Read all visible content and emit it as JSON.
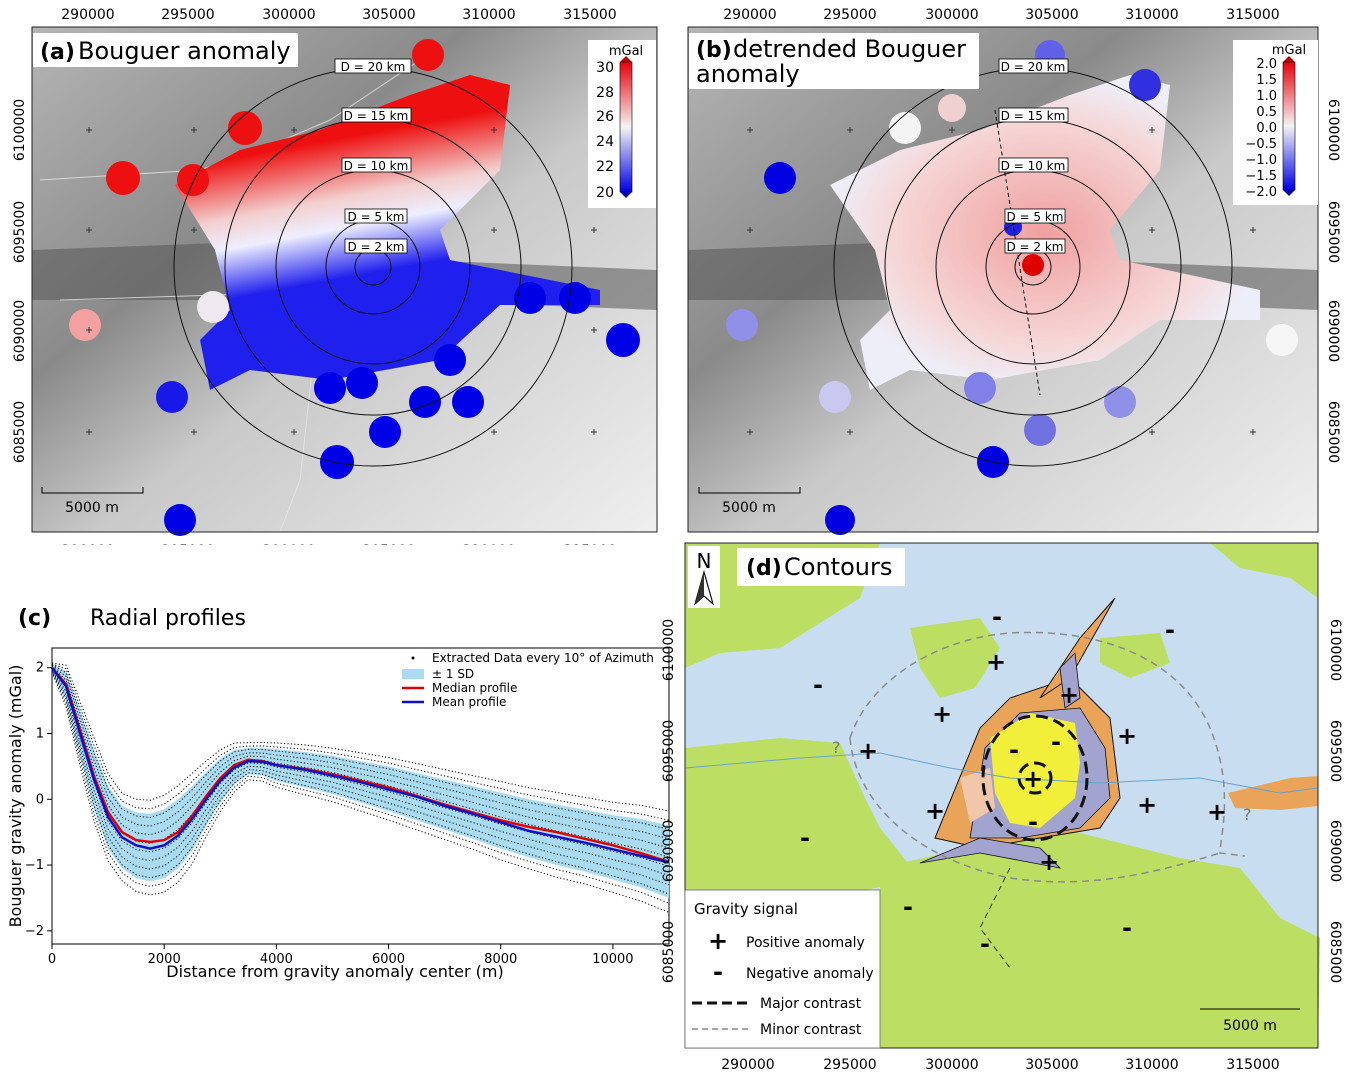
{
  "figure": {
    "panel_a": {
      "letter": "(a)",
      "title": "Bouguer anomaly",
      "colorbar": {
        "unit": "mGal",
        "ticks": [
          "30",
          "28",
          "26",
          "24",
          "22",
          "20"
        ],
        "cmap_high": "#e8000b",
        "cmap_mid": "#f4f4f4",
        "cmap_low": "#0000e6"
      },
      "ring_labels": [
        "D = 20 km",
        "D = 15 km",
        "D = 10 km",
        "D = 5 km",
        "D = 2 km"
      ],
      "scalebar": "5000 m",
      "x_ticks": [
        "290000",
        "295000",
        "300000",
        "305000",
        "310000",
        "315000"
      ],
      "y_ticks": [
        "6100000",
        "6095000",
        "6090000",
        "6085000"
      ]
    },
    "panel_b": {
      "letter": "(b)",
      "title_line1": "detrended Bouguer",
      "title_line2": "anomaly",
      "colorbar": {
        "unit": "mGal",
        "ticks": [
          "2.0",
          "1.5",
          "1.0",
          "0.5",
          "0.0",
          "−0.5",
          "−1.0",
          "−1.5",
          "−2.0"
        ]
      },
      "ring_labels": [
        "D = 20 km",
        "D = 15 km",
        "D = 10 km",
        "D = 5 km",
        "D = 2 km"
      ],
      "scalebar": "5000 m",
      "x_ticks": [
        "290000",
        "295000",
        "300000",
        "305000",
        "310000",
        "315000"
      ],
      "y_ticks": [
        "6100000",
        "6095000",
        "6090000",
        "6085000"
      ]
    },
    "panel_c": {
      "letter": "(c)",
      "title": "Radial profiles",
      "legend": [
        {
          "label": "Extracted Data every 10° of Azimuth",
          "kind": "dots",
          "color": "#000000"
        },
        {
          "label": "± 1 SD",
          "kind": "patch",
          "color": "#a9dcf2"
        },
        {
          "label": "Median profile",
          "kind": "line",
          "color": "#e00000"
        },
        {
          "label": "Mean profile",
          "kind": "line",
          "color": "#1010c8"
        }
      ]
    },
    "panel_d": {
      "letter": "(d)",
      "title": "Contours",
      "north": "N",
      "question_marks": [
        "?",
        "?"
      ],
      "legend_title": "Gravity signal",
      "legend_items": [
        "Positive anomaly",
        "Negative anomaly",
        "Major contrast",
        "Minor contrast"
      ],
      "legend_symbols": [
        "+",
        "-"
      ],
      "scalebar": "5000 m",
      "x_ticks": [
        "290000",
        "295000",
        "300000",
        "305000",
        "310000",
        "315000"
      ],
      "y_ticks": [
        "6100000",
        "6095000",
        "6090000",
        "6085000"
      ],
      "colors": {
        "water": "#c9ddf1",
        "green": "#bcdf63",
        "orange": "#e9a45a",
        "yellow": "#f1ef3a",
        "lavender": "#a3a3cf",
        "pink": "#f2c7a9"
      }
    }
  },
  "chart_data": {
    "type": "line",
    "title": "Radial profiles",
    "xlabel": "Distance from gravity anomaly center (m)",
    "ylabel": "Bouguer gravity anomaly (mGal)",
    "xlim": [
      0,
      11000
    ],
    "ylim": [
      -2.2,
      2.3
    ],
    "x_ticks": [
      0,
      2000,
      4000,
      6000,
      8000,
      10000
    ],
    "y_ticks": [
      2,
      1,
      0,
      -1,
      -2
    ],
    "x": [
      0,
      250,
      500,
      750,
      1000,
      1250,
      1500,
      1750,
      2000,
      2250,
      2500,
      2750,
      3000,
      3250,
      3500,
      3750,
      4000,
      4500,
      5000,
      5500,
      6000,
      6500,
      7000,
      7500,
      8000,
      8500,
      9000,
      9500,
      10000,
      10500,
      11000
    ],
    "series": [
      {
        "name": "Median profile",
        "color": "#e00000",
        "values": [
          2.0,
          1.75,
          1.05,
          0.35,
          -0.2,
          -0.5,
          -0.62,
          -0.65,
          -0.62,
          -0.5,
          -0.25,
          0.05,
          0.32,
          0.52,
          0.6,
          0.58,
          0.52,
          0.46,
          0.38,
          0.28,
          0.18,
          0.05,
          -0.08,
          -0.2,
          -0.32,
          -0.42,
          -0.5,
          -0.6,
          -0.7,
          -0.82,
          -0.95
        ]
      },
      {
        "name": "Mean profile",
        "color": "#1010c8",
        "values": [
          2.0,
          1.72,
          1.0,
          0.3,
          -0.27,
          -0.58,
          -0.7,
          -0.75,
          -0.7,
          -0.55,
          -0.3,
          0.0,
          0.28,
          0.48,
          0.58,
          0.57,
          0.52,
          0.45,
          0.36,
          0.26,
          0.15,
          0.04,
          -0.1,
          -0.22,
          -0.35,
          -0.48,
          -0.57,
          -0.66,
          -0.76,
          -0.86,
          -0.96
        ]
      }
    ],
    "sd_band": {
      "name": "± 1 SD",
      "upper": [
        2.05,
        1.95,
        1.35,
        0.75,
        0.2,
        -0.1,
        -0.2,
        -0.22,
        -0.15,
        0.0,
        0.2,
        0.42,
        0.62,
        0.75,
        0.78,
        0.78,
        0.76,
        0.72,
        0.66,
        0.58,
        0.5,
        0.4,
        0.3,
        0.2,
        0.1,
        0.0,
        -0.08,
        -0.16,
        -0.24,
        -0.3,
        -0.4
      ],
      "lower": [
        1.95,
        1.5,
        0.65,
        -0.15,
        -0.75,
        -1.05,
        -1.2,
        -1.25,
        -1.2,
        -1.05,
        -0.78,
        -0.4,
        -0.05,
        0.22,
        0.38,
        0.36,
        0.28,
        0.18,
        0.08,
        -0.05,
        -0.18,
        -0.32,
        -0.46,
        -0.6,
        -0.75,
        -0.88,
        -1.0,
        -1.1,
        -1.22,
        -1.34,
        -1.5
      ]
    }
  }
}
